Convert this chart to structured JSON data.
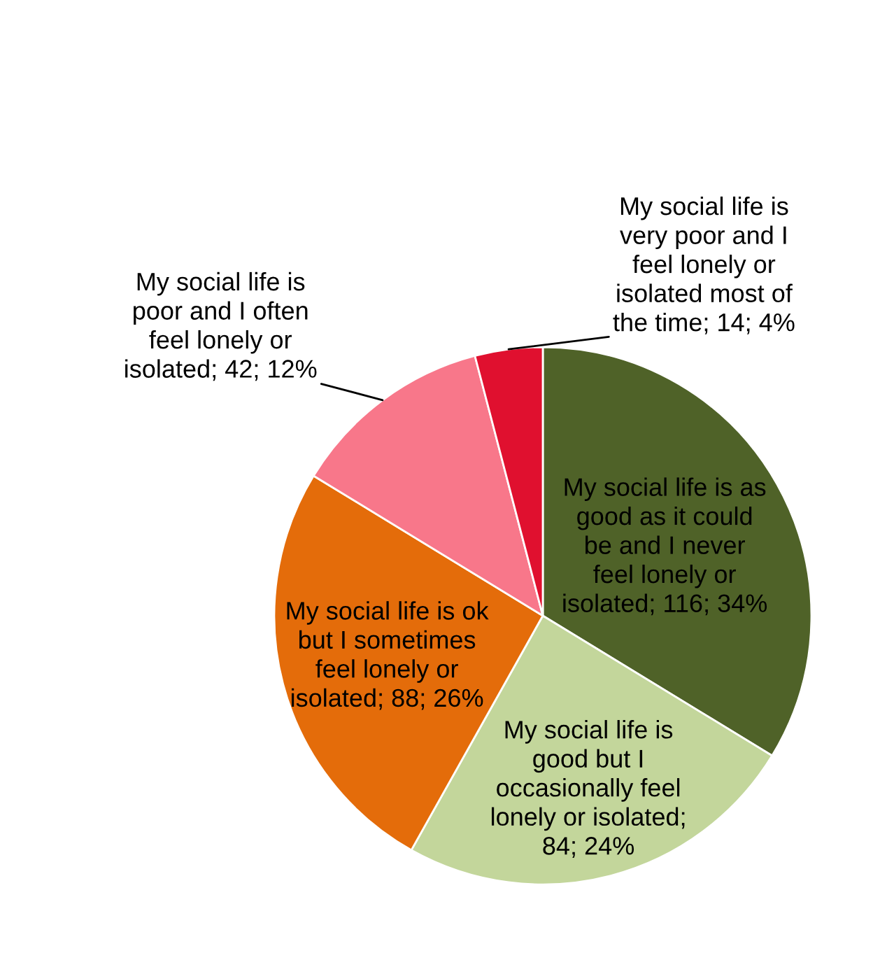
{
  "chart_data": {
    "type": "pie",
    "categories": [
      "My social life is as\ngood as it could\nbe and I never\nfeel lonely or\nisolated; 116; 34%",
      "My social life is\ngood but I\noccasionally feel\nlonely or isolated;\n84; 24%",
      "My social life is ok\nbut I sometimes\nfeel lonely or\nisolated; 88; 26%",
      "My social life is\npoor and I often\nfeel lonely or\nisolated; 42; 12%",
      "My social life is\nvery poor and I\nfeel lonely or\nisolated most of\nthe time; 14; 4%"
    ],
    "values": [
      116,
      84,
      88,
      42,
      14
    ],
    "colors": [
      "#4f6228",
      "#c3d69b",
      "#e46c0a",
      "#f8778a",
      "#e0102f"
    ],
    "legend": false
  }
}
